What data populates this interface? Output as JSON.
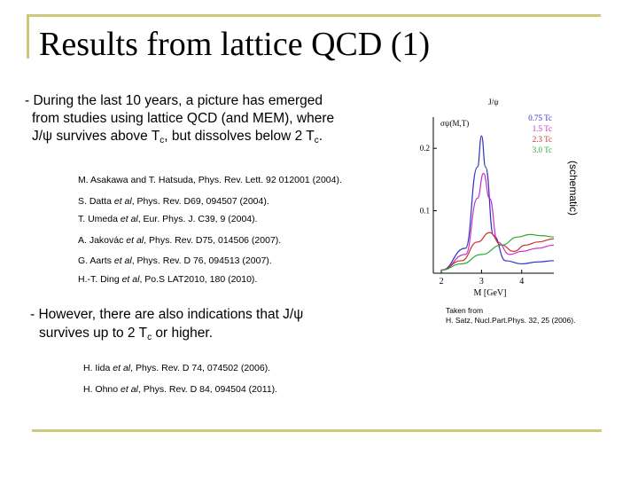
{
  "slide": {
    "title": "Results from lattice QCD (1)"
  },
  "main": {
    "line1": "- During the last 10 years, a picture has emerged",
    "line2": "from studies using lattice QCD (and MEM), where",
    "line3_pre": "J/ψ survives above T",
    "line3_sub": "c",
    "line3_mid": ", but dissolves below 2 T",
    "line3_sub2": "c",
    "line3_end": "."
  },
  "references": [
    {
      "pre": "M. Asakawa and T. Hatsuda, Phys. Rev. Lett. 92 012001 (2004).",
      "etal": "",
      "post": ""
    },
    {
      "pre": "S. Datta ",
      "etal": "et al",
      "post": ", Phys. Rev. D69, 094507 (2004)."
    },
    {
      "pre": "T. Umeda ",
      "etal": "et al",
      "post": ", Eur. Phys. J. C39, 9 (2004)."
    },
    {
      "pre": "A. Jakovác ",
      "etal": "et al",
      "post": ", Phys. Rev. D75, 014506 (2007)."
    },
    {
      "pre": "G. Aarts ",
      "etal": "et al",
      "post": ", Phys. Rev. D 76, 094513 (2007)."
    },
    {
      "pre": "H.-T. Ding ",
      "etal": "et al",
      "post": ", Po.S LAT2010, 180 (2010)."
    }
  ],
  "second": {
    "line1": "- However, there are also indications that J/ψ",
    "line2_pre": "survives up to 2 T",
    "line2_sub": "c",
    "line2_end": " or higher."
  },
  "references2": [
    {
      "pre": "H. Iida ",
      "etal": "et al",
      "post": ", Phys. Rev. D 74, 074502 (2006)."
    },
    {
      "pre": "H. Ohno ",
      "etal": "et al",
      "post": ", Phys. Rev. D 84, 094504 (2011)."
    }
  ],
  "figure": {
    "side_label": "(schematic)",
    "caption_line1": "Taken from",
    "caption_line2": "H. Satz, Nucl.Part.Phys. 32, 25 (2006)."
  },
  "chart_data": {
    "type": "line",
    "title": "J/ψ",
    "ylabel": "σψ(M,T)",
    "xlabel": "M [GeV]",
    "xlim": [
      1.8,
      4.8
    ],
    "ylim": [
      0,
      0.25
    ],
    "xticks": [
      "2",
      "3",
      "4"
    ],
    "yticks": [
      "0.1",
      "0.2"
    ],
    "series": [
      {
        "name": "0.75 Tc",
        "color": "#3030c8",
        "x": [
          2.0,
          2.6,
          2.9,
          3.0,
          3.1,
          3.3,
          3.6,
          4.0,
          4.4,
          4.8
        ],
        "values": [
          0.005,
          0.04,
          0.17,
          0.22,
          0.17,
          0.06,
          0.02,
          0.015,
          0.018,
          0.02
        ]
      },
      {
        "name": "1.5 Tc",
        "color": "#c830c8",
        "x": [
          2.0,
          2.6,
          2.9,
          3.05,
          3.2,
          3.4,
          3.7,
          4.0,
          4.4,
          4.8
        ],
        "values": [
          0.005,
          0.03,
          0.12,
          0.16,
          0.12,
          0.05,
          0.03,
          0.035,
          0.04,
          0.045
        ]
      },
      {
        "name": "2.3 Tc",
        "color": "#c83030",
        "x": [
          2.0,
          2.5,
          2.9,
          3.2,
          3.5,
          3.8,
          4.1,
          4.4,
          4.8
        ],
        "values": [
          0.005,
          0.02,
          0.05,
          0.065,
          0.045,
          0.035,
          0.045,
          0.05,
          0.055
        ]
      },
      {
        "name": "3.0 Tc",
        "color": "#30a830",
        "x": [
          2.0,
          2.5,
          3.0,
          3.5,
          3.9,
          4.2,
          4.5,
          4.8
        ],
        "values": [
          0.005,
          0.015,
          0.03,
          0.045,
          0.058,
          0.062,
          0.06,
          0.058
        ]
      }
    ]
  }
}
